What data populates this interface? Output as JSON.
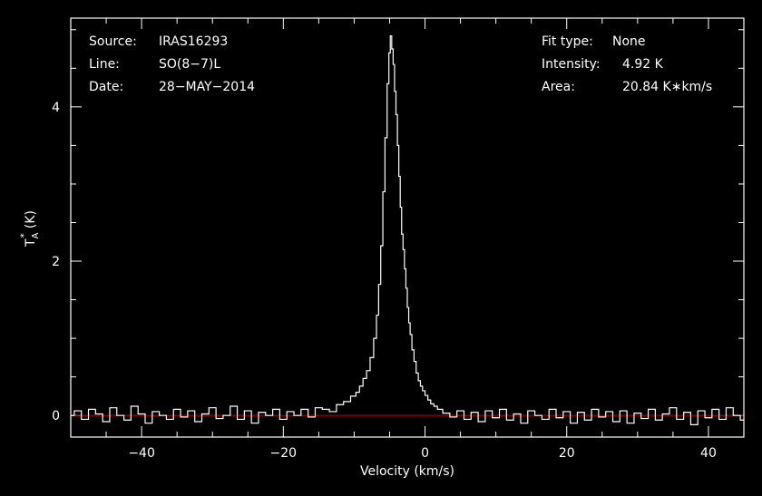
{
  "chart_data": {
    "type": "line",
    "xlabel": "Velocity (km/s)",
    "ylabel_main": "T",
    "ylabel_super": "*",
    "ylabel_sub": "A",
    "ylabel_unit": "(K)",
    "xlim": [
      -50,
      45
    ],
    "ylim": [
      -0.28,
      5.15
    ],
    "xticks": [
      -40,
      -20,
      0,
      20,
      40
    ],
    "xtick_labels": [
      "−40",
      "−20",
      "0",
      "20",
      "40"
    ],
    "yticks": [
      0,
      2,
      4
    ],
    "ytick_labels": [
      "0",
      "2",
      "4"
    ],
    "baseline": 0,
    "colors": {
      "background": "#000000",
      "axes": "#ffffff",
      "spectrum": "#ffffff",
      "baseline": "#cc0000"
    },
    "info_left": [
      {
        "label": "Source:",
        "value": "IRAS16293"
      },
      {
        "label": "Line:",
        "value": "SO(8−7)L"
      },
      {
        "label": "Date:",
        "value": "28−MAY−2014"
      }
    ],
    "info_right": [
      {
        "label": "Fit type:",
        "value": "None"
      },
      {
        "label": "Intensity:",
        "value": "4.92 K"
      },
      {
        "label": "Area:",
        "value": "20.84 K∗km/s"
      }
    ],
    "series": [
      {
        "values": [
          [
            -50.0,
            0.0
          ],
          [
            -49.0,
            0.06
          ],
          [
            -48.0,
            -0.05
          ],
          [
            -47.0,
            0.08
          ],
          [
            -46.0,
            0.02
          ],
          [
            -45.0,
            -0.08
          ],
          [
            -44.0,
            0.1
          ],
          [
            -43.0,
            0.0
          ],
          [
            -42.0,
            -0.06
          ],
          [
            -41.0,
            0.12
          ],
          [
            -40.0,
            0.02
          ],
          [
            -39.0,
            -0.1
          ],
          [
            -38.0,
            0.05
          ],
          [
            -37.0,
            0.0
          ],
          [
            -36.0,
            -0.05
          ],
          [
            -35.0,
            0.08
          ],
          [
            -34.0,
            -0.02
          ],
          [
            -33.0,
            0.06
          ],
          [
            -32.0,
            -0.08
          ],
          [
            -31.0,
            0.02
          ],
          [
            -30.0,
            0.1
          ],
          [
            -29.0,
            -0.04
          ],
          [
            -28.0,
            0.0
          ],
          [
            -27.0,
            0.12
          ],
          [
            -26.0,
            -0.05
          ],
          [
            -25.0,
            0.06
          ],
          [
            -24.0,
            -0.1
          ],
          [
            -23.0,
            0.04
          ],
          [
            -22.0,
            0.0
          ],
          [
            -21.0,
            0.08
          ],
          [
            -20.0,
            -0.05
          ],
          [
            -19.0,
            0.05
          ],
          [
            -18.0,
            0.0
          ],
          [
            -17.0,
            0.08
          ],
          [
            -16.0,
            -0.02
          ],
          [
            -15.0,
            0.1
          ],
          [
            -14.0,
            0.08
          ],
          [
            -13.0,
            0.05
          ],
          [
            -12.0,
            0.14
          ],
          [
            -11.0,
            0.18
          ],
          [
            -10.0,
            0.25
          ],
          [
            -9.5,
            0.3
          ],
          [
            -9.0,
            0.38
          ],
          [
            -8.5,
            0.48
          ],
          [
            -8.0,
            0.58
          ],
          [
            -7.5,
            0.75
          ],
          [
            -7.0,
            1.0
          ],
          [
            -6.7,
            1.3
          ],
          [
            -6.4,
            1.7
          ],
          [
            -6.1,
            2.2
          ],
          [
            -5.8,
            2.9
          ],
          [
            -5.5,
            3.6
          ],
          [
            -5.2,
            4.3
          ],
          [
            -5.0,
            4.7
          ],
          [
            -4.8,
            4.92
          ],
          [
            -4.6,
            4.75
          ],
          [
            -4.4,
            4.55
          ],
          [
            -4.2,
            4.2
          ],
          [
            -4.0,
            3.9
          ],
          [
            -3.8,
            3.5
          ],
          [
            -3.6,
            3.1
          ],
          [
            -3.4,
            2.7
          ],
          [
            -3.2,
            2.35
          ],
          [
            -3.0,
            2.15
          ],
          [
            -2.8,
            1.9
          ],
          [
            -2.6,
            1.65
          ],
          [
            -2.4,
            1.4
          ],
          [
            -2.2,
            1.2
          ],
          [
            -2.0,
            1.05
          ],
          [
            -1.7,
            0.85
          ],
          [
            -1.4,
            0.7
          ],
          [
            -1.1,
            0.55
          ],
          [
            -0.8,
            0.45
          ],
          [
            -0.5,
            0.38
          ],
          [
            -0.2,
            0.32
          ],
          [
            0.2,
            0.26
          ],
          [
            0.6,
            0.2
          ],
          [
            1.0,
            0.15
          ],
          [
            1.5,
            0.12
          ],
          [
            2.0,
            0.08
          ],
          [
            3.0,
            0.03
          ],
          [
            4.0,
            -0.02
          ],
          [
            5.0,
            0.06
          ],
          [
            6.0,
            -0.05
          ],
          [
            7.0,
            0.04
          ],
          [
            8.0,
            -0.08
          ],
          [
            9.0,
            0.06
          ],
          [
            10.0,
            -0.03
          ],
          [
            11.0,
            0.08
          ],
          [
            12.0,
            -0.06
          ],
          [
            13.0,
            0.02
          ],
          [
            14.0,
            -0.1
          ],
          [
            15.0,
            0.06
          ],
          [
            16.0,
            0.0
          ],
          [
            17.0,
            -0.05
          ],
          [
            18.0,
            0.08
          ],
          [
            19.0,
            -0.03
          ],
          [
            20.0,
            0.05
          ],
          [
            21.0,
            -0.1
          ],
          [
            22.0,
            0.04
          ],
          [
            23.0,
            -0.06
          ],
          [
            24.0,
            0.08
          ],
          [
            25.0,
            -0.02
          ],
          [
            26.0,
            0.05
          ],
          [
            27.0,
            -0.08
          ],
          [
            28.0,
            0.06
          ],
          [
            29.0,
            -0.1
          ],
          [
            30.0,
            0.03
          ],
          [
            31.0,
            -0.04
          ],
          [
            32.0,
            0.08
          ],
          [
            33.0,
            -0.06
          ],
          [
            34.0,
            0.02
          ],
          [
            35.0,
            0.1
          ],
          [
            36.0,
            -0.05
          ],
          [
            37.0,
            0.04
          ],
          [
            38.0,
            -0.12
          ],
          [
            39.0,
            0.06
          ],
          [
            40.0,
            -0.03
          ],
          [
            41.0,
            0.08
          ],
          [
            42.0,
            -0.05
          ],
          [
            43.0,
            0.1
          ],
          [
            44.0,
            0.0
          ],
          [
            45.0,
            -0.06
          ]
        ]
      }
    ]
  }
}
